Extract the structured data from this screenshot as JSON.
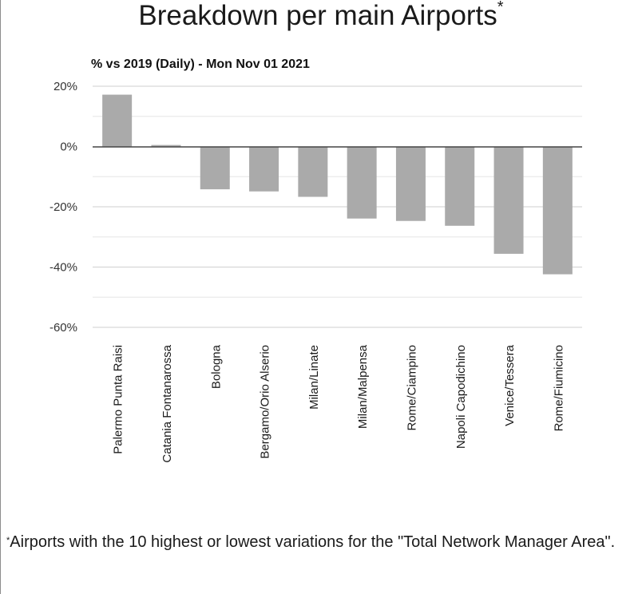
{
  "title": {
    "text": "Breakdown per main Airports",
    "marker": "*"
  },
  "chart_data": {
    "type": "bar",
    "title": "Breakdown per main Airports",
    "subtitle": "% vs 2019 (Daily) - Mon Nov 01 2021",
    "xlabel": "",
    "ylabel": "",
    "ylim": [
      -60,
      20
    ],
    "yticks": [
      20,
      0,
      -20,
      -40,
      -60
    ],
    "ytick_labels": [
      "20%",
      "0%",
      "-20%",
      "-40%",
      "-60%"
    ],
    "minor_gridlines": [
      10,
      -10,
      -30,
      -50
    ],
    "categories": [
      "Palermo Punta Raisi",
      "Catania Fontanarossa",
      "Bologna",
      "Bergamo/Orio Alserio",
      "Milan/Linate",
      "Milan/Malpensa",
      "Rome/Ciampino",
      "Napoli Capodichino",
      "Venice/Tessera",
      "Rome/Fiumicino"
    ],
    "values": [
      17.2,
      0.5,
      -14.2,
      -14.9,
      -16.7,
      -23.9,
      -24.7,
      -26.3,
      -35.6,
      -42.4
    ],
    "bar_color": "#aaaaaa",
    "grid": true,
    "legend": "none"
  },
  "footnote": {
    "marker": "*",
    "text": "Airports with the 10 highest or lowest variations for the \"Total Network Manager Area\"."
  }
}
